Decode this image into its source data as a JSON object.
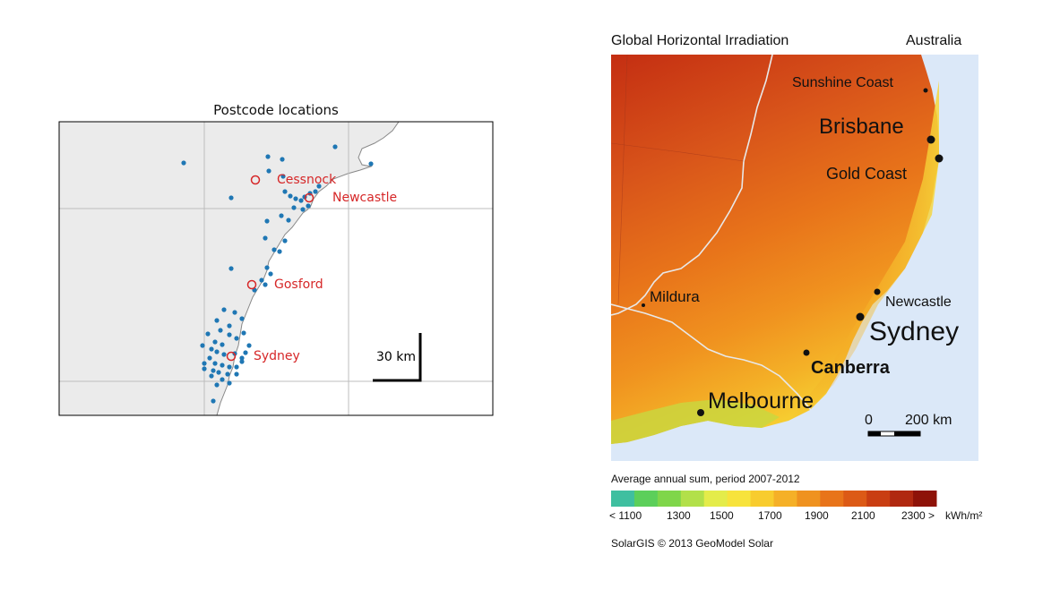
{
  "left_map": {
    "title": "Postcode locations",
    "scale_bar_label": "30 km",
    "towns": [
      {
        "name": "Cessnock",
        "color": "#d62728"
      },
      {
        "name": "Newcastle",
        "color": "#d62728"
      },
      {
        "name": "Gosford",
        "color": "#d62728"
      },
      {
        "name": "Sydney",
        "color": "#d62728"
      }
    ],
    "point_color": "#1f77b4",
    "land_color": "#ebebeb"
  },
  "right_map": {
    "title": "Global Horizontal Irradiation",
    "region": "Australia",
    "cities": [
      "Sunshine Coast",
      "Brisbane",
      "Gold Coast",
      "Newcastle",
      "Sydney",
      "Mildura",
      "Canberra",
      "Melbourne"
    ],
    "scale_label_start": "0",
    "scale_label_end": "200 km",
    "legend_title": "Average annual sum, period 2007-2012",
    "legend_ticks": [
      "< 1100",
      "1300",
      "1500",
      "1700",
      "1900",
      "2100",
      "2300 >",
      "kWh/m²"
    ],
    "legend_colors": [
      "#3fbfa0",
      "#5ccf5a",
      "#7fd64a",
      "#b2e04a",
      "#e4ec4a",
      "#f7e33c",
      "#f8cc2e",
      "#f5b027",
      "#ef921f",
      "#e8741a",
      "#dc5a16",
      "#c93e12",
      "#b02810",
      "#8e1208"
    ],
    "credit": "SolarGIS © 2013 GeoModel Solar",
    "sea_color": "#dbe8f8"
  }
}
